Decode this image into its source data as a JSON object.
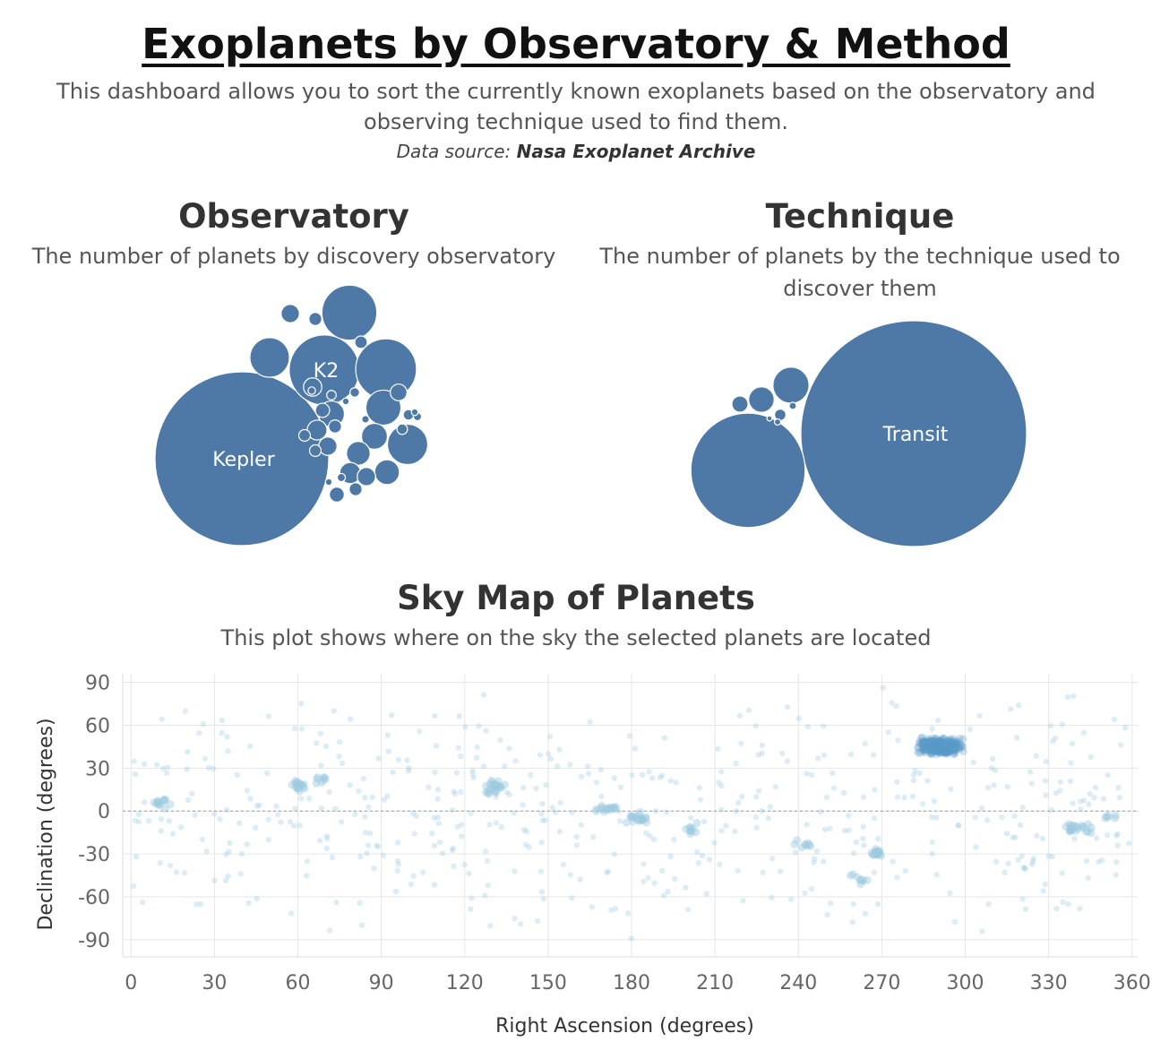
{
  "header": {
    "title": "Exoplanets by Observatory & Method",
    "intro_line1": "This dashboard allows you to sort the currently known exoplanets based on the observatory and",
    "intro_line2": "observing technique used to find them.",
    "source_prefix": "Data source: ",
    "source_name": "Nasa Exoplanet Archive"
  },
  "observatory": {
    "title": "Observatory",
    "subtitle": "The number of planets by discovery observatory"
  },
  "technique": {
    "title": "Technique",
    "subtitle_line1": "The number of planets by the technique used to",
    "subtitle_line2": "discover them"
  },
  "skymap": {
    "title": "Sky Map of Planets",
    "subtitle": "This plot shows where on the sky the selected planets are located"
  },
  "colors": {
    "bubble": "#4e79a7",
    "point": "#9ecae1",
    "grid": "#e6e6e6",
    "text": "#333333"
  },
  "chart_data": [
    {
      "type": "bubble",
      "name": "observatory",
      "bubbles": [
        {
          "label": "Kepler",
          "value": 2700
        },
        {
          "label": "K2",
          "value": 440
        },
        {
          "label": "",
          "value": 330
        },
        {
          "label": "",
          "value": 270
        },
        {
          "label": "",
          "value": 140
        },
        {
          "label": "",
          "value": 145
        },
        {
          "label": "",
          "value": 110
        },
        {
          "label": "",
          "value": 60
        },
        {
          "label": "",
          "value": 60
        },
        {
          "label": "",
          "value": 55
        },
        {
          "label": "",
          "value": 50
        },
        {
          "label": "",
          "value": 40
        },
        {
          "label": "",
          "value": 35
        },
        {
          "label": "",
          "value": 30
        },
        {
          "label": "",
          "value": 30
        },
        {
          "label": "",
          "value": 30
        },
        {
          "label": "",
          "value": 30
        },
        {
          "label": "",
          "value": 25
        },
        {
          "label": "",
          "value": 20
        },
        {
          "label": "",
          "value": 18
        },
        {
          "label": "",
          "value": 15
        },
        {
          "label": "",
          "value": 15
        },
        {
          "label": "",
          "value": 15
        },
        {
          "label": "",
          "value": 14
        },
        {
          "label": "",
          "value": 12
        },
        {
          "label": "",
          "value": 12
        },
        {
          "label": "",
          "value": 10
        },
        {
          "label": "",
          "value": 10
        },
        {
          "label": "",
          "value": 8
        },
        {
          "label": "",
          "value": 8
        },
        {
          "label": "",
          "value": 6
        },
        {
          "label": "",
          "value": 6
        },
        {
          "label": "",
          "value": 5
        },
        {
          "label": "",
          "value": 5
        },
        {
          "label": "",
          "value": 4
        },
        {
          "label": "",
          "value": 4
        },
        {
          "label": "",
          "value": 4
        }
      ]
    },
    {
      "type": "bubble",
      "name": "technique",
      "bubbles": [
        {
          "label": "Transit",
          "value": 3900
        },
        {
          "label": "",
          "value": 1000
        },
        {
          "label": "",
          "value": 100
        },
        {
          "label": "",
          "value": 50
        },
        {
          "label": "",
          "value": 20
        },
        {
          "label": "",
          "value": 10
        },
        {
          "label": "",
          "value": 4
        },
        {
          "label": "",
          "value": 3
        },
        {
          "label": "",
          "value": 2
        }
      ]
    },
    {
      "type": "scatter",
      "name": "sky map",
      "xlabel": "Right Ascension (degrees)",
      "ylabel": "Declination (degrees)",
      "xlim": [
        -3,
        362
      ],
      "ylim": [
        -102,
        96
      ],
      "xticks": [
        0,
        30,
        60,
        90,
        120,
        150,
        180,
        210,
        240,
        270,
        300,
        330,
        360
      ],
      "yticks": [
        90,
        60,
        30,
        0,
        -30,
        -60,
        -90
      ],
      "grid": true,
      "zero_line": true,
      "clusters": [
        {
          "ra": 291,
          "dec": 45,
          "spread_ra": 6,
          "spread_dec": 4,
          "count": 380
        },
        {
          "ra": 10,
          "dec": 6,
          "spread_ra": 3,
          "spread_dec": 3,
          "count": 14
        },
        {
          "ra": 60,
          "dec": 18,
          "spread_ra": 3,
          "spread_dec": 3,
          "count": 16
        },
        {
          "ra": 68,
          "dec": 22,
          "spread_ra": 2,
          "spread_dec": 2,
          "count": 8
        },
        {
          "ra": 130,
          "dec": 16,
          "spread_ra": 3,
          "spread_dec": 6,
          "count": 26
        },
        {
          "ra": 172,
          "dec": 1,
          "spread_ra": 4,
          "spread_dec": 2,
          "count": 16
        },
        {
          "ra": 183,
          "dec": -5,
          "spread_ra": 4,
          "spread_dec": 3,
          "count": 22
        },
        {
          "ra": 202,
          "dec": -12,
          "spread_ra": 3,
          "spread_dec": 3,
          "count": 10
        },
        {
          "ra": 268,
          "dec": -29,
          "spread_ra": 2,
          "spread_dec": 2,
          "count": 22
        },
        {
          "ra": 261,
          "dec": -48,
          "spread_ra": 4,
          "spread_dec": 4,
          "count": 8
        },
        {
          "ra": 340,
          "dec": -12,
          "spread_ra": 5,
          "spread_dec": 3,
          "count": 24
        },
        {
          "ra": 242,
          "dec": -24,
          "spread_ra": 3,
          "spread_dec": 3,
          "count": 8
        },
        {
          "ra": 352,
          "dec": -4,
          "spread_ra": 3,
          "spread_dec": 3,
          "count": 6
        }
      ],
      "field_count": 520,
      "field_dec_range": [
        -90,
        90
      ]
    }
  ]
}
